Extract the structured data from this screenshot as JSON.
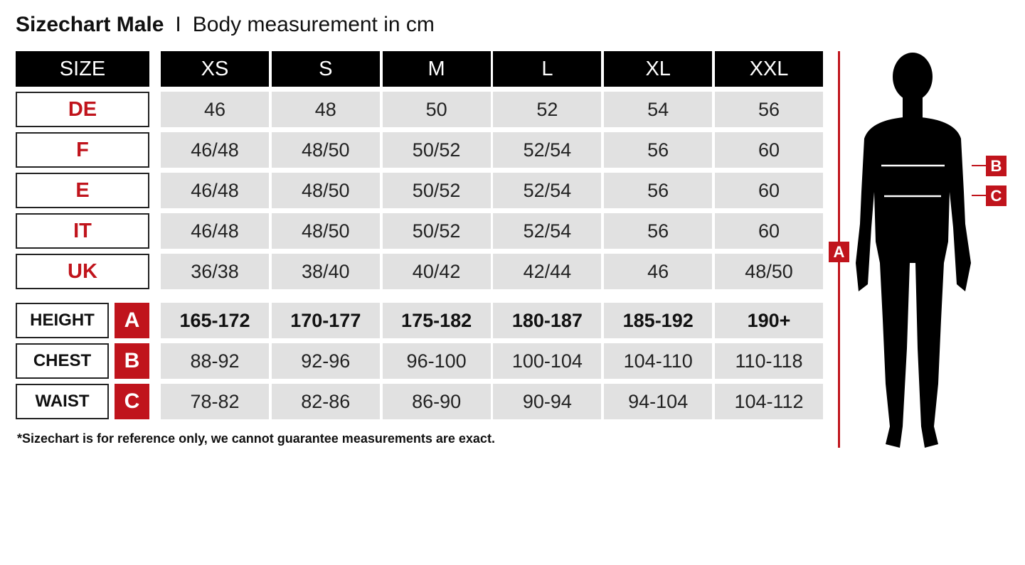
{
  "title": {
    "main": "Sizechart Male",
    "separator": "I",
    "sub": "Body measurement in cm"
  },
  "header": {
    "size_label": "SIZE",
    "sizes": [
      "XS",
      "S",
      "M",
      "L",
      "XL",
      "XXL"
    ]
  },
  "conversion_rows": [
    {
      "label": "DE",
      "values": [
        "46",
        "48",
        "50",
        "52",
        "54",
        "56"
      ]
    },
    {
      "label": "F",
      "values": [
        "46/48",
        "48/50",
        "50/52",
        "52/54",
        "56",
        "60"
      ]
    },
    {
      "label": "E",
      "values": [
        "46/48",
        "48/50",
        "50/52",
        "52/54",
        "56",
        "60"
      ]
    },
    {
      "label": "IT",
      "values": [
        "46/48",
        "48/50",
        "50/52",
        "52/54",
        "56",
        "60"
      ]
    },
    {
      "label": "UK",
      "values": [
        "36/38",
        "38/40",
        "40/42",
        "42/44",
        "46",
        "48/50"
      ]
    }
  ],
  "measurement_rows": [
    {
      "label": "HEIGHT",
      "letter": "A",
      "values": [
        "165-172",
        "170-177",
        "175-182",
        "180-187",
        "185-192",
        "190+"
      ]
    },
    {
      "label": "CHEST",
      "letter": "B",
      "values": [
        "88-92",
        "92-96",
        "96-100",
        "100-104",
        "104-110",
        "110-118"
      ]
    },
    {
      "label": "WAIST",
      "letter": "C",
      "values": [
        "78-82",
        "82-86",
        "86-90",
        "90-94",
        "94-104",
        "104-112"
      ]
    }
  ],
  "note": "*Sizechart is for reference only, we cannot guarantee measurements are exact.",
  "figure": {
    "height_marker": "A",
    "chest_marker": "B",
    "waist_marker": "C"
  },
  "colors": {
    "accent": "#c0141c",
    "header_bg": "#000000",
    "cell_bg": "#e1e1e1"
  }
}
